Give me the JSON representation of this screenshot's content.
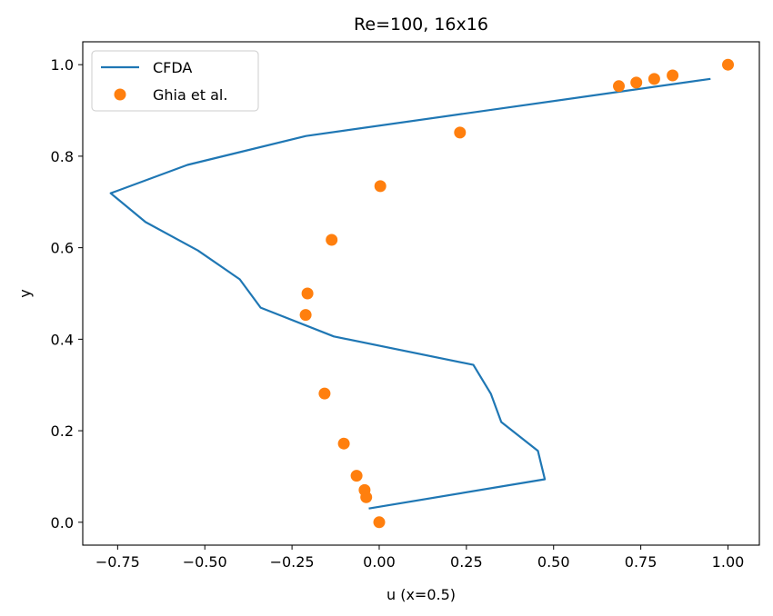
{
  "chart_data": {
    "type": "line",
    "title": "Re=100, 16x16",
    "xlabel": "u (x=0.5)",
    "ylabel": "y",
    "xlim": [
      -0.85,
      1.09
    ],
    "ylim": [
      -0.05,
      1.05
    ],
    "xticks": [
      -0.75,
      -0.5,
      -0.25,
      0.0,
      0.25,
      0.5,
      0.75,
      1.0
    ],
    "xtick_labels": [
      "−0.75",
      "−0.50",
      "−0.25",
      "0.00",
      "0.25",
      "0.50",
      "0.75",
      "1.00"
    ],
    "yticks": [
      0.0,
      0.2,
      0.4,
      0.6,
      0.8,
      1.0
    ],
    "ytick_labels": [
      "0.0",
      "0.2",
      "0.4",
      "0.6",
      "0.8",
      "1.0"
    ],
    "grid": false,
    "legend_position": "top-left",
    "series": [
      {
        "name": "CFDA",
        "kind": "line",
        "color": "#1f77b4",
        "x": [
          -0.03,
          0.475,
          0.455,
          0.35,
          0.32,
          0.27,
          -0.13,
          -0.34,
          -0.4,
          -0.52,
          -0.67,
          -0.77,
          -0.55,
          -0.21,
          0.95
        ],
        "y": [
          0.03,
          0.094,
          0.156,
          0.219,
          0.281,
          0.344,
          0.406,
          0.469,
          0.531,
          0.594,
          0.656,
          0.719,
          0.781,
          0.844,
          0.969
        ]
      },
      {
        "name": "Ghia et al.",
        "kind": "scatter",
        "color": "#ff7f0e",
        "x": [
          0.0,
          -0.0372,
          -0.0419,
          -0.0648,
          -0.1015,
          -0.1566,
          -0.2109,
          -0.2058,
          -0.1364,
          0.0033,
          0.2315,
          0.6872,
          0.7372,
          0.7887,
          0.8412,
          1.0
        ],
        "y": [
          0.0,
          0.0547,
          0.0703,
          0.1016,
          0.1719,
          0.2813,
          0.4531,
          0.5,
          0.6172,
          0.7344,
          0.8516,
          0.9531,
          0.9609,
          0.9688,
          0.9766,
          1.0
        ]
      }
    ]
  }
}
